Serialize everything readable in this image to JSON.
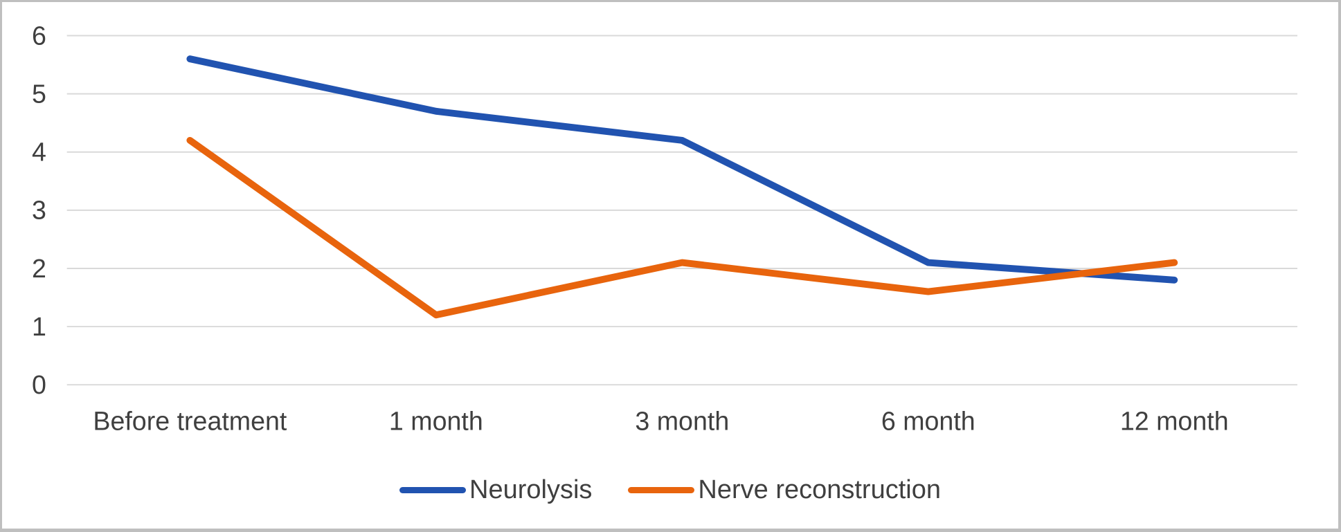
{
  "window": {
    "background_color": "#ffffff",
    "frame_border_color": "#bfbfbf"
  },
  "chart_data": {
    "type": "line",
    "title": "",
    "xlabel": "",
    "ylabel": "",
    "categories": [
      "Before treatment",
      "1 month",
      "3 month",
      "6 month",
      "12 month"
    ],
    "series": [
      {
        "name": "Neurolysis",
        "color": "#2153b0",
        "values": [
          5.6,
          4.7,
          4.2,
          2.1,
          1.8
        ]
      },
      {
        "name": "Nerve reconstruction",
        "color": "#e8640d",
        "values": [
          4.2,
          1.2,
          2.1,
          1.6,
          2.1
        ]
      }
    ],
    "ylim": [
      0,
      6
    ],
    "ytick_step": 1,
    "ytick_labels": [
      "0",
      "1",
      "2",
      "3",
      "4",
      "5",
      "6"
    ],
    "grid": true,
    "gridline_color": "#d9d9d9",
    "axis_text_color": "#3f3f3f",
    "legend_position": "bottom",
    "line_width": 10
  }
}
